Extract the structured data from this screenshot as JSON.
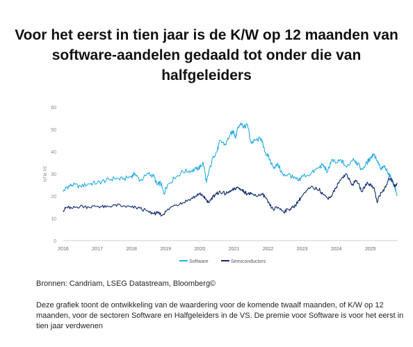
{
  "title": "Voor het eerst in tien jaar is de K/W op 12 maanden van software-aandelen gedaald tot onder die van halfgeleiders",
  "source": "Bronnen: Candriam, LSEG Datastream, Bloomberg©",
  "note": "Deze grafiek toont de ontwikkeling van de waardering voor de komende twaalf maanden, of K/W op 12 maanden, voor de sectoren Software en Halfgeleiders in de VS. De premie voor Software is voor het eerst in tien jaar verdwenen",
  "chart_data": {
    "type": "line",
    "ylabel": "NTM PE",
    "xlabel": "",
    "ylim": [
      0,
      60
    ],
    "xlim": [
      2016.0,
      2025.8
    ],
    "yticks": [
      0,
      10,
      20,
      30,
      40,
      50,
      60
    ],
    "xticks": [
      "2016",
      "2017",
      "2018",
      "2019",
      "2020",
      "2021",
      "2022",
      "2023",
      "2024",
      "2025"
    ],
    "grid": false,
    "legend_position": "bottom-center",
    "series": [
      {
        "name": "Software",
        "color": "#29abe2",
        "x": [
          2016.0,
          2016.1,
          2016.25,
          2016.5,
          2016.75,
          2017.0,
          2017.25,
          2017.5,
          2017.75,
          2018.0,
          2018.1,
          2018.25,
          2018.5,
          2018.65,
          2018.75,
          2018.85,
          2018.95,
          2019.05,
          2019.25,
          2019.5,
          2019.75,
          2019.9,
          2020.0,
          2020.1,
          2020.2,
          2020.25,
          2020.4,
          2020.5,
          2020.6,
          2020.75,
          2020.9,
          2021.0,
          2021.05,
          2021.1,
          2021.2,
          2021.3,
          2021.4,
          2021.5,
          2021.65,
          2021.8,
          2021.9,
          2022.0,
          2022.15,
          2022.3,
          2022.45,
          2022.6,
          2022.75,
          2022.9,
          2023.0,
          2023.25,
          2023.5,
          2023.6,
          2023.75,
          2023.85,
          2024.0,
          2024.15,
          2024.3,
          2024.5,
          2024.6,
          2024.75,
          2024.9,
          2025.0,
          2025.1,
          2025.2,
          2025.3,
          2025.4,
          2025.5,
          2025.6,
          2025.7,
          2025.78
        ],
        "values": [
          22,
          24,
          25,
          24.5,
          25.5,
          26,
          27,
          28,
          27.5,
          29,
          30,
          27,
          30,
          29,
          25,
          26,
          21,
          25,
          28,
          31,
          31.5,
          32,
          33,
          35,
          26,
          30,
          38,
          40,
          45,
          43,
          48,
          49,
          46,
          50,
          53,
          51,
          52,
          44,
          45,
          46,
          40,
          38,
          33,
          34,
          29,
          30,
          28,
          27,
          29,
          30,
          33,
          34,
          31,
          36,
          35,
          36,
          33,
          37,
          35,
          32,
          35,
          37,
          39,
          36,
          32,
          33,
          31,
          28,
          25,
          20
        ]
      },
      {
        "name": "Semiconductors",
        "color": "#0d2a6b",
        "x": [
          2016.0,
          2016.1,
          2016.25,
          2016.5,
          2016.75,
          2017.0,
          2017.25,
          2017.5,
          2017.75,
          2018.0,
          2018.25,
          2018.5,
          2018.65,
          2018.75,
          2018.9,
          2019.0,
          2019.25,
          2019.5,
          2019.75,
          2019.9,
          2020.0,
          2020.1,
          2020.2,
          2020.25,
          2020.4,
          2020.5,
          2020.6,
          2020.75,
          2020.9,
          2021.0,
          2021.1,
          2021.2,
          2021.3,
          2021.4,
          2021.5,
          2021.65,
          2021.8,
          2021.9,
          2022.0,
          2022.15,
          2022.3,
          2022.45,
          2022.6,
          2022.75,
          2022.9,
          2023.0,
          2023.25,
          2023.5,
          2023.6,
          2023.75,
          2023.85,
          2024.0,
          2024.15,
          2024.3,
          2024.45,
          2024.6,
          2024.75,
          2024.9,
          2025.0,
          2025.1,
          2025.2,
          2025.25,
          2025.35,
          2025.45,
          2025.55,
          2025.65,
          2025.72,
          2025.78
        ],
        "values": [
          13.5,
          15,
          14.5,
          15.5,
          15,
          15.5,
          15,
          16,
          15.5,
          15,
          14.5,
          13,
          12,
          12.5,
          11.5,
          13,
          16,
          17,
          19,
          20,
          21,
          20,
          18,
          17,
          20,
          21,
          22,
          21,
          22,
          23,
          24,
          23,
          22,
          21,
          21,
          20,
          21,
          20,
          17,
          14,
          15,
          13,
          14,
          15,
          18,
          20,
          24,
          23,
          21,
          19,
          20,
          24,
          28,
          30,
          25,
          27,
          22,
          26,
          25,
          24,
          17,
          20,
          22,
          24,
          28,
          27,
          24,
          26
        ]
      }
    ]
  }
}
